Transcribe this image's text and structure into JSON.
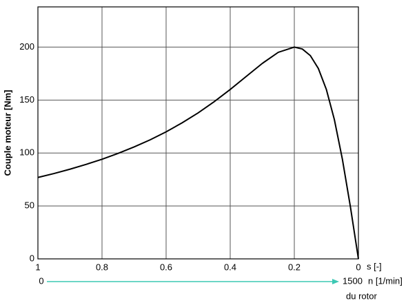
{
  "chart_data": {
    "type": "line",
    "y_label": "Couple moteur [Nm]",
    "x_label": "s [-]",
    "x": [
      1,
      0.95,
      0.9,
      0.85,
      0.8,
      0.75,
      0.7,
      0.65,
      0.6,
      0.55,
      0.5,
      0.45,
      0.4,
      0.35,
      0.3,
      0.25,
      0.2,
      0.175,
      0.15,
      0.125,
      0.1,
      0.075,
      0.05,
      0.025,
      0
    ],
    "values": [
      76.9,
      80.6,
      84.7,
      89.2,
      94.1,
      99.6,
      105.7,
      112.4,
      120.0,
      128.5,
      137.9,
      148.5,
      160.0,
      172.3,
      184.6,
      195.1,
      200,
      198.2,
      192.0,
      179.8,
      160,
      131.5,
      94.1,
      49.2,
      0
    ],
    "color": "#000000",
    "xlim": [
      1,
      0
    ],
    "xticks": [
      1,
      0.8,
      0.6,
      0.4,
      0.2,
      0
    ],
    "ylim": [
      0,
      238
    ],
    "yticks": [
      0,
      50,
      100,
      150,
      200
    ],
    "grid": true,
    "speed_axis": {
      "start": "0",
      "end": "1500",
      "unit": "n [1/min]",
      "sublabel": "du rotor",
      "color": "#3cc8b4"
    }
  }
}
